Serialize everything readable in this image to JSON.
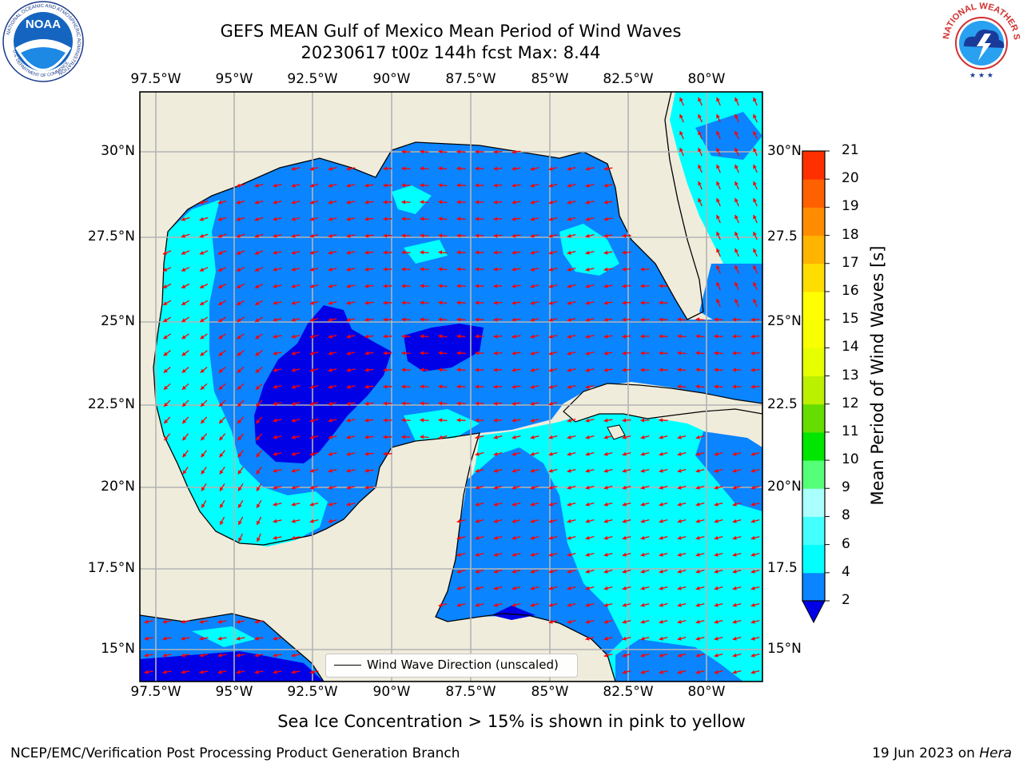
{
  "title": {
    "line1": "GEFS MEAN Gulf of Mexico Mean Period of Wind Waves",
    "line2": "20230617 t00z 144h fcst   Max: 8.44"
  },
  "logos": {
    "left": {
      "name": "NOAA",
      "ring_text": "NATIONAL OCEANIC AND ATMOSPHERIC ADMINISTRATION",
      "bottom_text": "U.S. DEPARTMENT OF COMMERCE"
    },
    "right": {
      "ring_text": "NATIONAL WEATHER SERVICE"
    }
  },
  "map": {
    "lon_labels": [
      "97.5°W",
      "95°W",
      "92.5°W",
      "90°W",
      "87.5°W",
      "85°W",
      "82.5°W",
      "80°W"
    ],
    "lat_labels": [
      "30°N",
      "27.5°N",
      "25°N",
      "22.5°N",
      "20°N",
      "17.5°N",
      "15°N"
    ],
    "lat_labels_right": [
      "30°N",
      "27.5",
      "25°N",
      "22.5",
      "20°N",
      "17.5",
      "15°N"
    ],
    "legend": "Wind Wave Direction (unscaled)",
    "colors": {
      "land": "#efecdc",
      "ocean_2_4": "#0a84ff",
      "ocean_4_6": "#00ffff",
      "ocean_6_8": "#44ffff",
      "ocean_below_2": "#0000e6",
      "arrow": "#ff0000"
    }
  },
  "colorbar": {
    "label": "Mean Period of Wind Waves [s]",
    "ticks": [
      "2",
      "4",
      "6",
      "8",
      "9",
      "10",
      "11",
      "12",
      "13",
      "14",
      "15",
      "16",
      "17",
      "18",
      "19",
      "20",
      "21"
    ],
    "colors": [
      "#0a84ff",
      "#00ffff",
      "#44ffff",
      "#aaffff",
      "#55ff77",
      "#00e600",
      "#66dd00",
      "#bbf000",
      "#e6ff00",
      "#f8ff00",
      "#ffff00",
      "#ffdd00",
      "#ffb400",
      "#ff8c00",
      "#ff6000",
      "#ff3000",
      "#ff0000"
    ],
    "extend_color": "#0000e6"
  },
  "footnote": "Sea Ice Concentration > 15% is shown in pink to yellow",
  "credit": "NCEP/EMC/Verification Post Processing Product Generation Branch",
  "run_date": "19 Jun 2023 on",
  "machine": "Hera"
}
